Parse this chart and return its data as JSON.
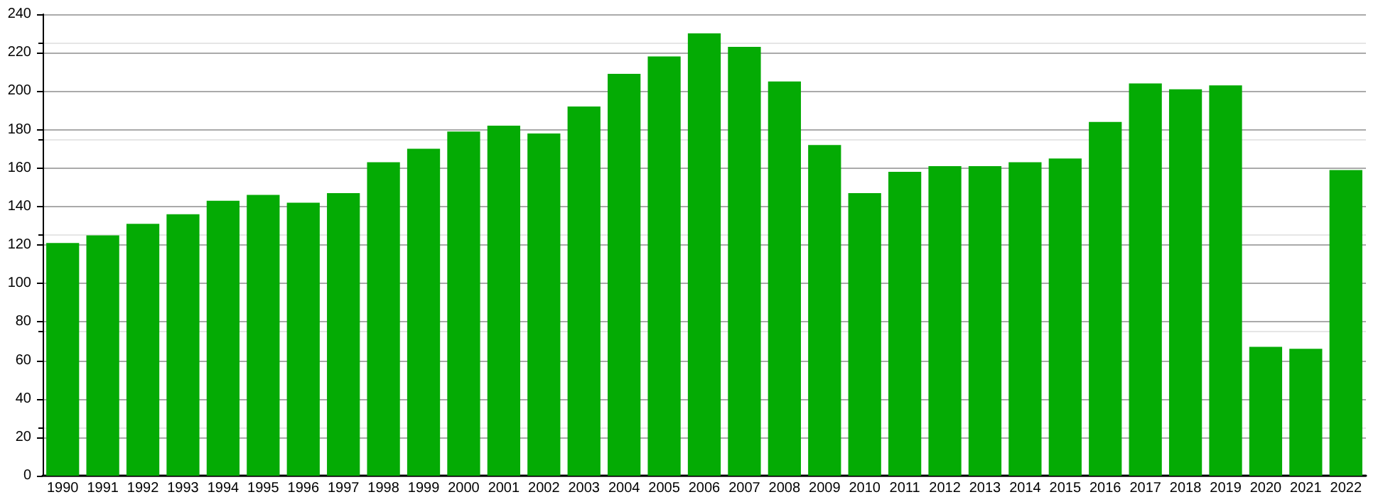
{
  "chart_data": {
    "type": "bar",
    "categories": [
      "1990",
      "1991",
      "1992",
      "1993",
      "1994",
      "1995",
      "1996",
      "1997",
      "1998",
      "1999",
      "2000",
      "2001",
      "2002",
      "2003",
      "2004",
      "2005",
      "2006",
      "2007",
      "2008",
      "2009",
      "2010",
      "2011",
      "2012",
      "2013",
      "2014",
      "2015",
      "2016",
      "2017",
      "2018",
      "2019",
      "2020",
      "2021",
      "2022"
    ],
    "values": [
      121,
      125,
      131,
      136,
      143,
      146,
      142,
      147,
      163,
      170,
      179,
      182,
      178,
      192,
      209,
      218,
      230,
      223,
      205,
      172,
      147,
      158,
      161,
      161,
      163,
      165,
      184,
      204,
      201,
      203,
      67,
      66,
      159
    ],
    "color": "#04ab04",
    "ylim": [
      0,
      240
    ],
    "yticks": [
      0,
      20,
      40,
      60,
      80,
      100,
      120,
      140,
      160,
      180,
      200,
      220,
      240
    ],
    "grid": "y"
  }
}
